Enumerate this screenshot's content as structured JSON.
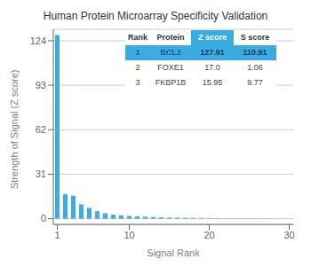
{
  "chart_data": {
    "type": "bar",
    "title": "Human Protein Microarray Specificity Validation",
    "xlabel": "Signal Rank",
    "ylabel": "Strength of Signal (Z score)",
    "x": [
      1,
      2,
      3,
      4,
      5,
      6,
      7,
      8,
      9,
      10,
      11,
      12,
      13,
      14,
      15,
      16,
      17,
      18,
      19,
      20,
      21,
      22,
      23,
      24,
      25,
      26,
      27,
      28,
      29,
      30
    ],
    "values": [
      127.91,
      17.0,
      15.95,
      10.0,
      7.5,
      5.2,
      3.8,
      2.8,
      2.2,
      1.9,
      1.6,
      1.3,
      1.1,
      0.95,
      0.82,
      0.72,
      0.62,
      0.54,
      0.47,
      0.41,
      0.36,
      0.31,
      0.27,
      0.24,
      0.21,
      0.19,
      0.17,
      0.14,
      0.12,
      0.1
    ],
    "color": "#3aace2",
    "xlim": [
      0.5,
      30.5
    ],
    "ylim": [
      -4,
      132
    ],
    "xticks": [
      1,
      10,
      20,
      30
    ],
    "yticks": [
      0,
      31,
      62,
      93,
      124
    ],
    "grid": true,
    "table": {
      "headers": [
        "Rank",
        "Protein",
        "Z score",
        "S score"
      ],
      "rows": [
        [
          "1",
          "BCL2",
          "127.91",
          "110.91"
        ],
        [
          "2",
          "FOXE1",
          "17.0",
          "1.06"
        ],
        [
          "3",
          "FKBP1B",
          "15.95",
          "9.77"
        ]
      ]
    }
  }
}
